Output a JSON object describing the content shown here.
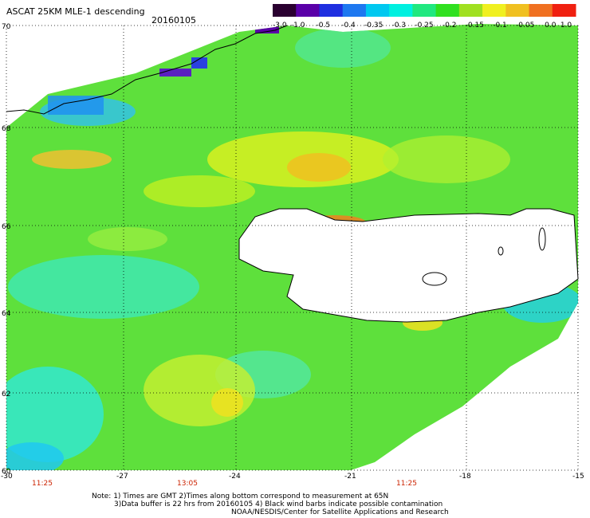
{
  "header": {
    "title": "ASCAT 25KM MLE-1 descending",
    "date": "20160105"
  },
  "colorbar": {
    "labels": [
      "-3.0",
      "-1.0",
      "-0.5",
      "-0.4",
      "-0.35",
      "-0.3",
      "-0.25",
      "-0.2",
      "-0.15",
      "-0.1",
      "-0.05",
      "0.0",
      "1.0"
    ],
    "colors": [
      "#2a0030",
      "#5a00a8",
      "#1f2fe0",
      "#1e78f0",
      "#00c8f0",
      "#00f0e0",
      "#20e880",
      "#30e020",
      "#a0e020",
      "#f0f020",
      "#f0c020",
      "#f07020",
      "#f02010"
    ]
  },
  "axes": {
    "lat_labels": [
      "70",
      "68",
      "66",
      "64",
      "62",
      "60"
    ],
    "lon_labels": [
      "-30",
      "-27",
      "-24",
      "-21",
      "-18",
      "-15"
    ]
  },
  "times": [
    "11:25",
    "13:05",
    "11:25"
  ],
  "notes": {
    "line1": "Note: 1) Times are GMT 2)Times along bottom correspond to measurement at 65N",
    "line2": "3)Data buffer is 22 hrs from 20160105 4) Black wind barbs indicate possible contamination",
    "line3": "NOAA/NESDIS/Center for Satellite Applications and Research"
  },
  "colors": {
    "land": "#ffffff",
    "no_data": "#ffffff",
    "time_label": "#cc2200",
    "coastline": "#000000",
    "grid": "#000000"
  }
}
